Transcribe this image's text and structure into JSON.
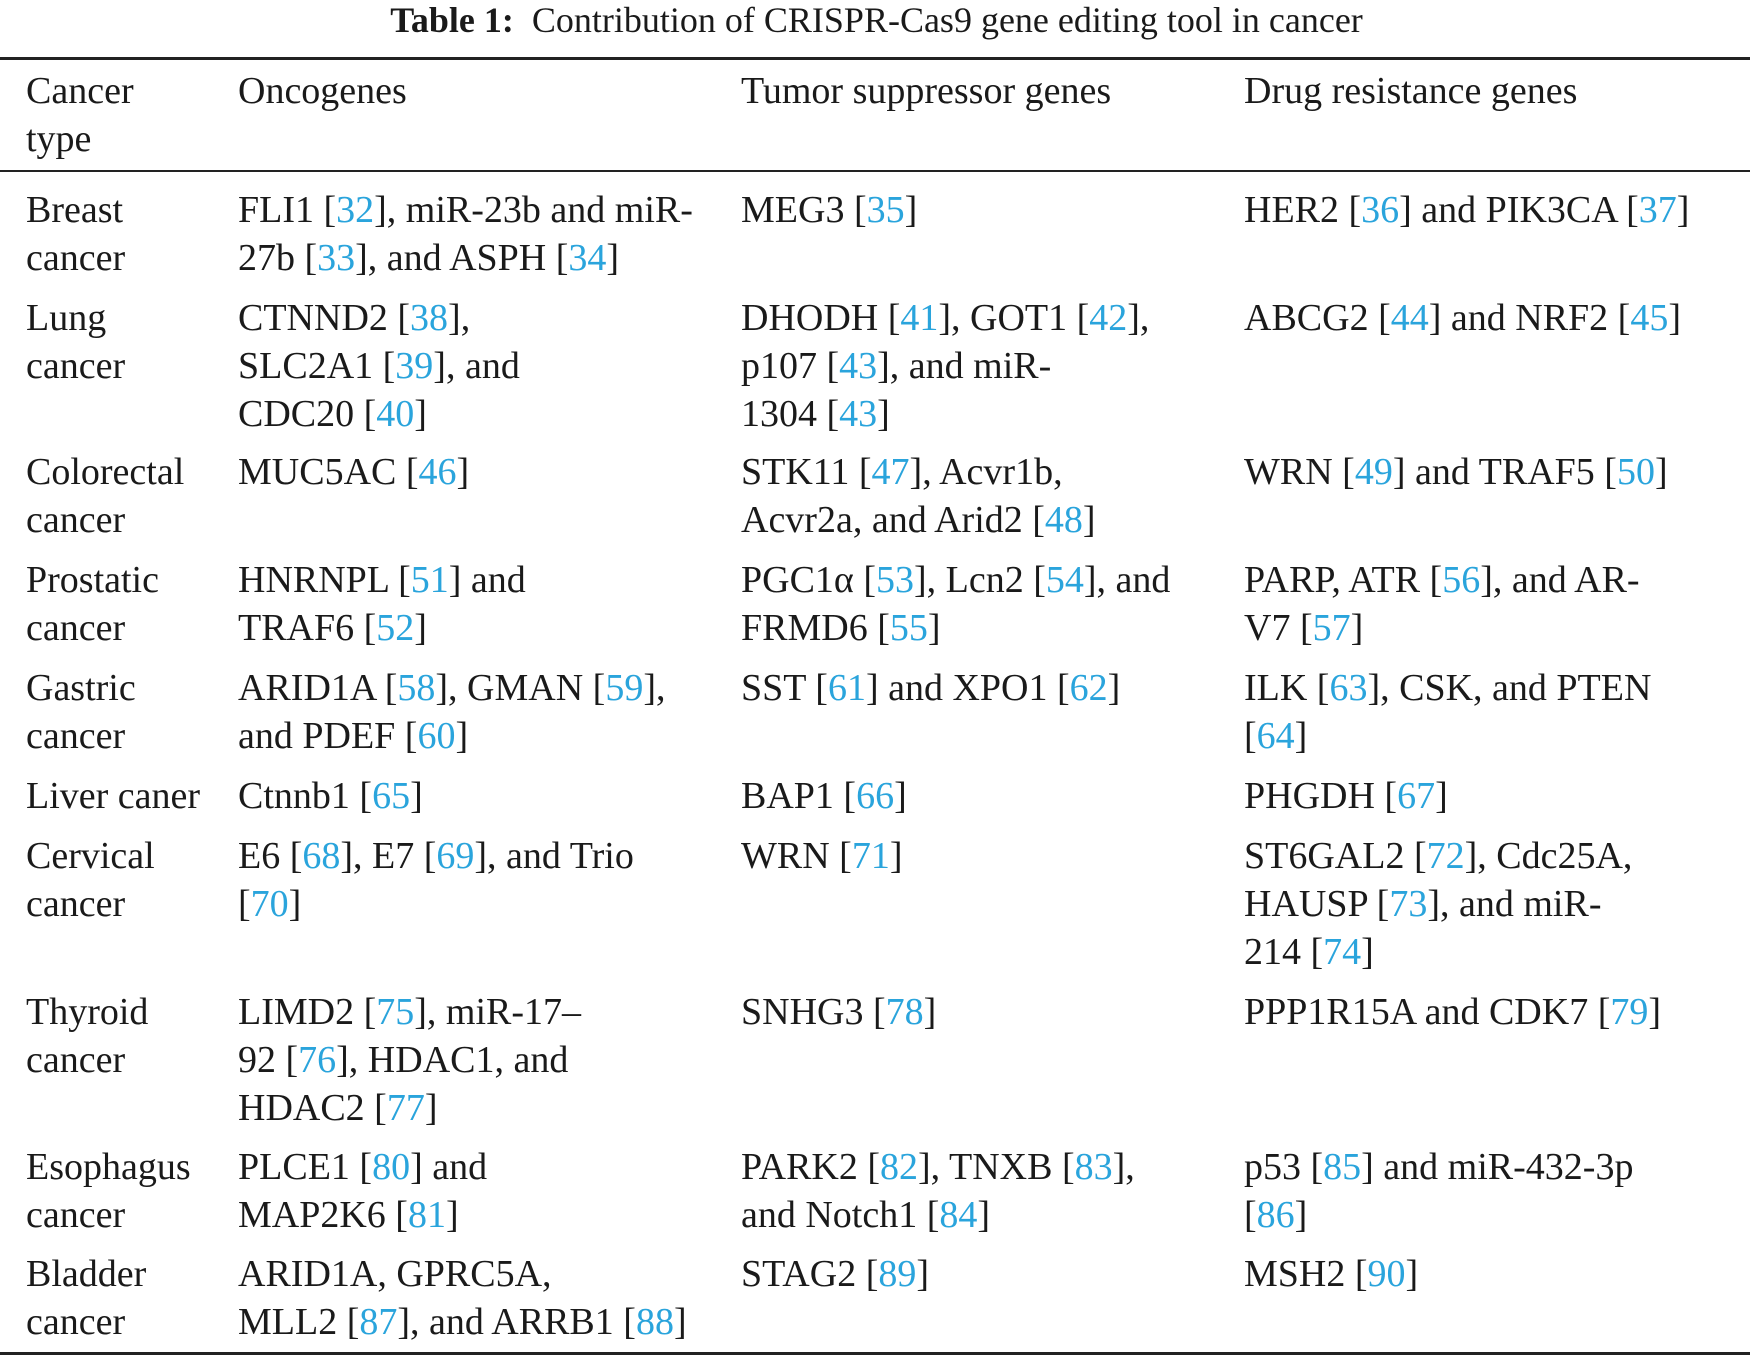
{
  "caption": {
    "label": "Table 1:",
    "title": "Contribution of CRISPR-Cas9 gene editing tool in cancer"
  },
  "columns": [
    "Cancer\ntype",
    "Oncogenes",
    "Tumor suppressor genes",
    "Drug resistance genes"
  ],
  "rows": [
    {
      "cancer_type": "Breast\ncancer",
      "oncogenes": [
        {
          "t": "FLI1 ["
        },
        {
          "r": "32"
        },
        {
          "t": "], miR-23b and miR-\n27b ["
        },
        {
          "r": "33"
        },
        {
          "t": "], and ASPH ["
        },
        {
          "r": "34"
        },
        {
          "t": "]"
        }
      ],
      "tumor_suppressor": [
        {
          "t": "MEG3 ["
        },
        {
          "r": "35"
        },
        {
          "t": "]"
        }
      ],
      "drug_resistance": [
        {
          "t": "HER2 ["
        },
        {
          "r": "36"
        },
        {
          "t": "] and PIK3CA ["
        },
        {
          "r": "37"
        },
        {
          "t": "]"
        }
      ]
    },
    {
      "cancer_type": "Lung\ncancer",
      "oncogenes": [
        {
          "t": "CTNND2 ["
        },
        {
          "r": "38"
        },
        {
          "t": "],\nSLC2A1 ["
        },
        {
          "r": "39"
        },
        {
          "t": "], and\nCDC20 ["
        },
        {
          "r": "40"
        },
        {
          "t": "]"
        }
      ],
      "tumor_suppressor": [
        {
          "t": "DHODH ["
        },
        {
          "r": "41"
        },
        {
          "t": "], GOT1 ["
        },
        {
          "r": "42"
        },
        {
          "t": "],\np107 ["
        },
        {
          "r": "43"
        },
        {
          "t": "], and miR-\n1304 ["
        },
        {
          "r": "43"
        },
        {
          "t": "]"
        }
      ],
      "drug_resistance": [
        {
          "t": "ABCG2 ["
        },
        {
          "r": "44"
        },
        {
          "t": "] and NRF2 ["
        },
        {
          "r": "45"
        },
        {
          "t": "]"
        }
      ]
    },
    {
      "cancer_type": "Colorectal\ncancer",
      "oncogenes": [
        {
          "t": "MUC5AC ["
        },
        {
          "r": "46"
        },
        {
          "t": "]"
        }
      ],
      "tumor_suppressor": [
        {
          "t": "STK11 ["
        },
        {
          "r": "47"
        },
        {
          "t": "], Acvr1b,\nAcvr2a, and Arid2 ["
        },
        {
          "r": "48"
        },
        {
          "t": "]"
        }
      ],
      "drug_resistance": [
        {
          "t": "WRN ["
        },
        {
          "r": "49"
        },
        {
          "t": "] and TRAF5 ["
        },
        {
          "r": "50"
        },
        {
          "t": "]"
        }
      ]
    },
    {
      "cancer_type": "Prostatic\ncancer",
      "oncogenes": [
        {
          "t": "HNRNPL ["
        },
        {
          "r": "51"
        },
        {
          "t": "] and\nTRAF6 ["
        },
        {
          "r": "52"
        },
        {
          "t": "]"
        }
      ],
      "tumor_suppressor": [
        {
          "t": "PGC1α ["
        },
        {
          "r": "53"
        },
        {
          "t": "], Lcn2 ["
        },
        {
          "r": "54"
        },
        {
          "t": "], and\nFRMD6 ["
        },
        {
          "r": "55"
        },
        {
          "t": "]"
        }
      ],
      "drug_resistance": [
        {
          "t": "PARP, ATR ["
        },
        {
          "r": "56"
        },
        {
          "t": "], and AR-\nV7 ["
        },
        {
          "r": "57"
        },
        {
          "t": "]"
        }
      ]
    },
    {
      "cancer_type": "Gastric\ncancer",
      "oncogenes": [
        {
          "t": "ARID1A ["
        },
        {
          "r": "58"
        },
        {
          "t": "], GMAN ["
        },
        {
          "r": "59"
        },
        {
          "t": "],\nand PDEF ["
        },
        {
          "r": "60"
        },
        {
          "t": "]"
        }
      ],
      "tumor_suppressor": [
        {
          "t": "SST ["
        },
        {
          "r": "61"
        },
        {
          "t": "] and XPO1 ["
        },
        {
          "r": "62"
        },
        {
          "t": "]"
        }
      ],
      "drug_resistance": [
        {
          "t": "ILK ["
        },
        {
          "r": "63"
        },
        {
          "t": "], CSK, and PTEN\n["
        },
        {
          "r": "64"
        },
        {
          "t": "]"
        }
      ]
    },
    {
      "cancer_type": "Liver caner",
      "oncogenes": [
        {
          "t": "Ctnnb1 ["
        },
        {
          "r": "65"
        },
        {
          "t": "]"
        }
      ],
      "tumor_suppressor": [
        {
          "t": "BAP1 ["
        },
        {
          "r": "66"
        },
        {
          "t": "]"
        }
      ],
      "drug_resistance": [
        {
          "t": "PHGDH ["
        },
        {
          "r": "67"
        },
        {
          "t": "]"
        }
      ]
    },
    {
      "cancer_type": "Cervical\ncancer",
      "oncogenes": [
        {
          "t": "E6 ["
        },
        {
          "r": "68"
        },
        {
          "t": "], E7 ["
        },
        {
          "r": "69"
        },
        {
          "t": "], and Trio\n["
        },
        {
          "r": "70"
        },
        {
          "t": "]"
        }
      ],
      "tumor_suppressor": [
        {
          "t": "WRN ["
        },
        {
          "r": "71"
        },
        {
          "t": "]"
        }
      ],
      "drug_resistance": [
        {
          "t": "ST6GAL2 ["
        },
        {
          "r": "72"
        },
        {
          "t": "], Cdc25A,\nHAUSP ["
        },
        {
          "r": "73"
        },
        {
          "t": "], and miR-\n214 ["
        },
        {
          "r": "74"
        },
        {
          "t": "]"
        }
      ]
    },
    {
      "cancer_type": "Thyroid\ncancer",
      "oncogenes": [
        {
          "t": "LIMD2 ["
        },
        {
          "r": "75"
        },
        {
          "t": "], miR-17–\n92 ["
        },
        {
          "r": "76"
        },
        {
          "t": "], HDAC1, and\nHDAC2 ["
        },
        {
          "r": "77"
        },
        {
          "t": "]"
        }
      ],
      "tumor_suppressor": [
        {
          "t": "SNHG3 ["
        },
        {
          "r": "78"
        },
        {
          "t": "]"
        }
      ],
      "drug_resistance": [
        {
          "t": "PPP1R15A and CDK7 ["
        },
        {
          "r": "79"
        },
        {
          "t": "]"
        }
      ]
    },
    {
      "cancer_type": "Esophagus\ncancer",
      "oncogenes": [
        {
          "t": "PLCE1 ["
        },
        {
          "r": "80"
        },
        {
          "t": "] and\nMAP2K6 ["
        },
        {
          "r": "81"
        },
        {
          "t": "]"
        }
      ],
      "tumor_suppressor": [
        {
          "t": "PARK2 ["
        },
        {
          "r": "82"
        },
        {
          "t": "], TNXB ["
        },
        {
          "r": "83"
        },
        {
          "t": "],\nand Notch1 ["
        },
        {
          "r": "84"
        },
        {
          "t": "]"
        }
      ],
      "drug_resistance": [
        {
          "t": "p53 ["
        },
        {
          "r": "85"
        },
        {
          "t": "] and miR-432-3p\n["
        },
        {
          "r": "86"
        },
        {
          "t": "]"
        }
      ]
    },
    {
      "cancer_type": "Bladder\ncancer",
      "oncogenes": [
        {
          "t": "ARID1A, GPRC5A,\nMLL2 ["
        },
        {
          "r": "87"
        },
        {
          "t": "], and ARRB1 ["
        },
        {
          "r": "88"
        },
        {
          "t": "]"
        }
      ],
      "tumor_suppressor": [
        {
          "t": "STAG2 ["
        },
        {
          "r": "89"
        },
        {
          "t": "]"
        }
      ],
      "drug_resistance": [
        {
          "t": "MSH2 ["
        },
        {
          "r": "90"
        },
        {
          "t": "]"
        }
      ]
    }
  ],
  "colors": {
    "reference_link": "#2aa4dc",
    "text": "#1a1a1a",
    "rule": "#222222"
  }
}
